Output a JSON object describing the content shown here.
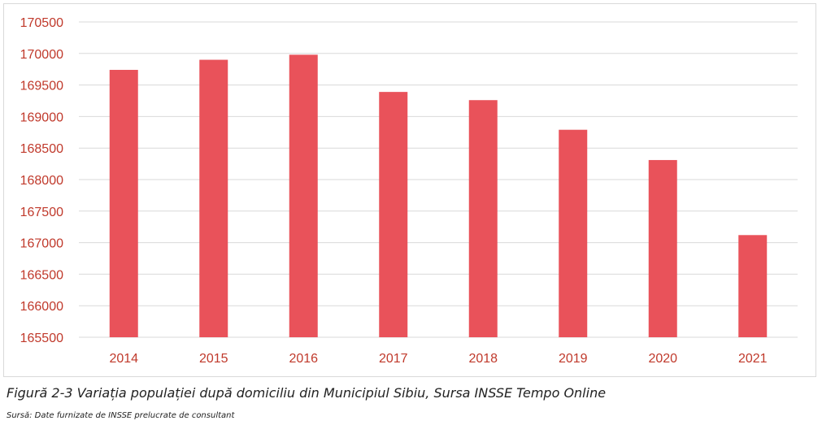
{
  "chart_data": {
    "type": "bar",
    "categories": [
      "2014",
      "2015",
      "2016",
      "2017",
      "2018",
      "2019",
      "2020",
      "2021"
    ],
    "values": [
      169740,
      169900,
      169980,
      169390,
      169260,
      168790,
      168310,
      167120
    ],
    "ylim": [
      165500,
      170500
    ],
    "ytick_step": 500,
    "grid": true,
    "bar_color": "#e9525a",
    "tick_label_color": "#c0392b",
    "grid_color": "#d9d9d9"
  },
  "caption": "Figură 2-3 Variația populației după domiciliu din Municipiul Sibiu, Sursa INSSE Tempo Online",
  "source_note": "Sursă: Date furnizate de INSSE prelucrate de consultant"
}
